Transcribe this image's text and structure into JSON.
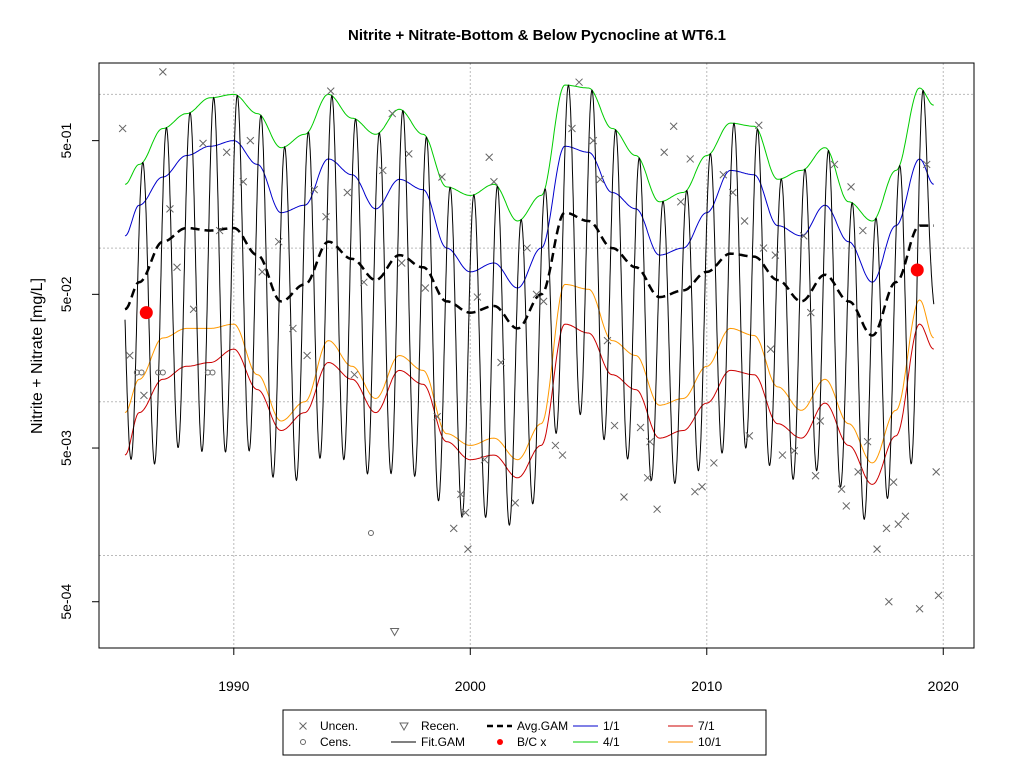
{
  "chart_data": {
    "type": "line",
    "title": "Nitrite + Nitrate-Bottom & Below Pycnocline at WT6.1",
    "xlabel": "",
    "ylabel": "Nitrite + Nitrate [mg/L]",
    "y_scale": "log",
    "xlim": [
      1984.3,
      2021.3
    ],
    "ylim": [
      0.00025,
      1.6
    ],
    "x_ticks": [
      1990,
      2000,
      2010,
      2020
    ],
    "x_tick_labels": [
      "1990",
      "2000",
      "2010",
      "2020"
    ],
    "y_ticks": [
      0.0005,
      0.005,
      0.05,
      0.5
    ],
    "y_tick_labels": [
      "5e-04",
      "5e-03",
      "5e-02",
      "5e-01"
    ],
    "grid_lines": [
      0.001,
      0.01,
      0.1,
      1
    ],
    "grid_x": [
      1990,
      2000,
      2010,
      2020
    ],
    "grid": true,
    "legend_position": "bottom",
    "legend": [
      {
        "key": "uncen",
        "label": "Uncen.",
        "symbol": "x",
        "color": "#666666"
      },
      {
        "key": "cens",
        "label": "Cens.",
        "symbol": "circle",
        "color": "#666666"
      },
      {
        "key": "recen",
        "label": "Recen.",
        "symbol": "triangle-down",
        "color": "#666666"
      },
      {
        "key": "fit_gam",
        "label": "Fit.GAM",
        "symbol": "line",
        "color": "#000000"
      },
      {
        "key": "avg_gam",
        "label": "Avg.GAM",
        "symbol": "dashed",
        "color": "#000000"
      },
      {
        "key": "bc_x",
        "label": "B/C x",
        "symbol": "dot",
        "color": "#ff0000"
      },
      {
        "key": "d1_1",
        "label": "1/1",
        "symbol": "line",
        "color": "#0000cc"
      },
      {
        "key": "d4_1",
        "label": "4/1",
        "symbol": "line",
        "color": "#00cc00"
      },
      {
        "key": "d7_1",
        "label": "7/1",
        "symbol": "line",
        "color": "#cc0000"
      },
      {
        "key": "d10_1",
        "label": "10/1",
        "symbol": "line",
        "color": "#ff9900"
      }
    ],
    "series": [
      {
        "key": "avg_gam",
        "color": "#000000",
        "dashed": true,
        "width": 2.5,
        "x": [
          1985.4,
          1986,
          1987,
          1988,
          1989,
          1990,
          1991,
          1992,
          1993,
          1994,
          1995,
          1996,
          1997,
          1998,
          1999,
          2000,
          2001,
          2002,
          2003,
          2004,
          2005,
          2006,
          2007,
          2008,
          2009,
          2010,
          2011,
          2012,
          2013,
          2014,
          2015,
          2016,
          2017,
          2018,
          2019,
          2019.6
        ],
        "y": [
          0.04,
          0.06,
          0.11,
          0.135,
          0.13,
          0.135,
          0.09,
          0.045,
          0.058,
          0.11,
          0.085,
          0.062,
          0.09,
          0.075,
          0.045,
          0.038,
          0.042,
          0.03,
          0.05,
          0.17,
          0.15,
          0.1,
          0.075,
          0.048,
          0.053,
          0.07,
          0.092,
          0.088,
          0.062,
          0.045,
          0.067,
          0.045,
          0.027,
          0.06,
          0.14,
          0.14
        ]
      },
      {
        "key": "d1_1",
        "color": "#0000cc",
        "dashed": false,
        "width": 1,
        "x": [
          1985.4,
          1986,
          1987,
          1988,
          1989,
          1990,
          1991,
          1992,
          1993,
          1994,
          1995,
          1996,
          1997,
          1998,
          1999,
          2000,
          2001,
          2002,
          2003,
          2004,
          2005,
          2006,
          2007,
          2008,
          2009,
          2010,
          2011,
          2012,
          2013,
          2014,
          2015,
          2016,
          2017,
          2018,
          2019,
          2019.6
        ],
        "y": [
          0.12,
          0.19,
          0.29,
          0.4,
          0.46,
          0.5,
          0.35,
          0.17,
          0.19,
          0.38,
          0.3,
          0.18,
          0.28,
          0.24,
          0.1,
          0.07,
          0.08,
          0.055,
          0.1,
          0.46,
          0.42,
          0.23,
          0.18,
          0.09,
          0.1,
          0.17,
          0.32,
          0.3,
          0.14,
          0.12,
          0.19,
          0.11,
          0.06,
          0.14,
          0.38,
          0.26
        ]
      },
      {
        "key": "d4_1",
        "color": "#00cc00",
        "dashed": false,
        "width": 1,
        "x": [
          1985.4,
          1986,
          1987,
          1988,
          1989,
          1990,
          1991,
          1992,
          1993,
          1994,
          1995,
          1996,
          1997,
          1998,
          1999,
          2000,
          2001,
          2002,
          2003,
          2004,
          2005,
          2006,
          2007,
          2008,
          2009,
          2010,
          2011,
          2012,
          2013,
          2014,
          2015,
          2016,
          2017,
          2018,
          2019,
          2019.6
        ],
        "y": [
          0.26,
          0.35,
          0.6,
          0.75,
          0.95,
          1.0,
          0.75,
          0.45,
          0.55,
          1.0,
          0.7,
          0.55,
          0.8,
          0.55,
          0.25,
          0.22,
          0.26,
          0.15,
          0.22,
          1.15,
          1.1,
          0.6,
          0.4,
          0.2,
          0.23,
          0.4,
          0.65,
          0.62,
          0.28,
          0.32,
          0.45,
          0.2,
          0.15,
          0.32,
          1.1,
          0.85
        ]
      },
      {
        "key": "d7_1",
        "color": "#cc0000",
        "dashed": false,
        "width": 1,
        "x": [
          1985.4,
          1986,
          1987,
          1988,
          1989,
          1990,
          1991,
          1992,
          1993,
          1994,
          1995,
          1996,
          1997,
          1998,
          1999,
          2000,
          2001,
          2002,
          2003,
          2004,
          2005,
          2006,
          2007,
          2008,
          2009,
          2010,
          2011,
          2012,
          2013,
          2014,
          2015,
          2016,
          2017,
          2018,
          2019,
          2019.6
        ],
        "y": [
          0.0045,
          0.0085,
          0.014,
          0.017,
          0.018,
          0.022,
          0.012,
          0.0065,
          0.0085,
          0.018,
          0.014,
          0.0085,
          0.016,
          0.013,
          0.0055,
          0.0042,
          0.0045,
          0.0032,
          0.0052,
          0.032,
          0.028,
          0.015,
          0.012,
          0.0058,
          0.0065,
          0.0098,
          0.016,
          0.015,
          0.0072,
          0.0058,
          0.0098,
          0.0052,
          0.0029,
          0.006,
          0.032,
          0.022
        ]
      },
      {
        "key": "d10_1",
        "color": "#ff9900",
        "dashed": false,
        "width": 1,
        "x": [
          1985.4,
          1986,
          1987,
          1988,
          1989,
          1990,
          1991,
          1992,
          1993,
          1994,
          1995,
          1996,
          1997,
          1998,
          1999,
          2000,
          2001,
          2002,
          2003,
          2004,
          2005,
          2006,
          2007,
          2008,
          2009,
          2010,
          2011,
          2012,
          2013,
          2014,
          2015,
          2016,
          2017,
          2018,
          2019,
          2019.6
        ],
        "y": [
          0.0085,
          0.014,
          0.026,
          0.03,
          0.03,
          0.032,
          0.015,
          0.0075,
          0.01,
          0.025,
          0.017,
          0.0105,
          0.02,
          0.016,
          0.0062,
          0.0052,
          0.0058,
          0.0042,
          0.0072,
          0.058,
          0.054,
          0.025,
          0.02,
          0.0095,
          0.0105,
          0.017,
          0.03,
          0.027,
          0.0125,
          0.0088,
          0.014,
          0.0072,
          0.004,
          0.0088,
          0.046,
          0.026
        ]
      },
      {
        "key": "fit_gam",
        "color": "#000000",
        "dashed": false,
        "width": 1,
        "seasonal": true,
        "x": [
          1985.4,
          1986,
          1987,
          1988,
          1989,
          1990,
          1991,
          1992,
          1993,
          1994,
          1995,
          1996,
          1997,
          1998,
          1999,
          2000,
          2001,
          2002,
          2003,
          2004,
          2005,
          2006,
          2007,
          2008,
          2009,
          2010,
          2011,
          2012,
          2013,
          2014,
          2015,
          2016,
          2017,
          2018,
          2019,
          2019.6
        ],
        "peak_y": [
          0.26,
          0.35,
          0.6,
          0.75,
          0.95,
          1.0,
          0.75,
          0.45,
          0.55,
          1.0,
          0.7,
          0.55,
          0.8,
          0.55,
          0.25,
          0.22,
          0.26,
          0.15,
          0.22,
          1.15,
          1.1,
          0.6,
          0.4,
          0.2,
          0.23,
          0.4,
          0.65,
          0.62,
          0.28,
          0.32,
          0.45,
          0.2,
          0.15,
          0.32,
          1.1,
          0.85
        ],
        "trough_y": [
          0.0045,
          0.0038,
          0.004,
          0.0055,
          0.0045,
          0.0048,
          0.0048,
          0.0028,
          0.0032,
          0.0048,
          0.004,
          0.0032,
          0.0035,
          0.0032,
          0.002,
          0.0017,
          0.0018,
          0.0015,
          0.0025,
          0.009,
          0.008,
          0.005,
          0.004,
          0.0028,
          0.003,
          0.0038,
          0.005,
          0.005,
          0.0035,
          0.003,
          0.0038,
          0.0025,
          0.0015,
          0.0028,
          0.0045,
          0.04
        ]
      },
      {
        "key": "bc_x",
        "type": "points",
        "color": "#ff0000",
        "x": [
          1986.3,
          2018.9
        ],
        "y": [
          0.038,
          0.072
        ]
      },
      {
        "key": "cens",
        "type": "points",
        "color": "#666666",
        "x": [
          1985.9,
          1986.1,
          1986.8,
          1987.0,
          1988.9,
          1989.1,
          1995.8
        ],
        "y": [
          0.0155,
          0.0155,
          0.0155,
          0.0155,
          0.0155,
          0.0155,
          0.0014
        ]
      },
      {
        "key": "recen",
        "type": "points",
        "color": "#666666",
        "x": [
          1996.8
        ],
        "y": [
          0.00032
        ]
      },
      {
        "key": "uncen",
        "type": "points",
        "color": "#666666",
        "x": [
          1987.0,
          1985.3,
          1985.6,
          1986.2,
          1987.6,
          1988.3,
          1988.7,
          1989.4,
          1990.7,
          1991.2,
          1991.9,
          1992.5,
          1993.4,
          1994.1,
          1994.8,
          1995.5,
          1996.3,
          1996.7,
          1997.4,
          1998.1,
          1998.8,
          1999.3,
          1999.6,
          1999.9,
          2000.3,
          2000.8,
          2001.3,
          2001.9,
          2002.4,
          2003.1,
          2003.6,
          2004.6,
          2005.2,
          2005.8,
          2006.5,
          2007.2,
          2007.5,
          2007.9,
          2008.6,
          2009.3,
          2009.8,
          2010.3,
          2011.1,
          2011.6,
          2012.2,
          2012.7,
          2013.2,
          2013.7,
          2014.4,
          2014.8,
          2015.4,
          2015.9,
          2016.4,
          2016.8,
          2017.2,
          2017.6,
          2017.9,
          2018.4,
          2019.0,
          2019.3,
          2019.7,
          2019.8,
          1987.3,
          1989.7,
          1990.4,
          1993.9,
          1997.1,
          1999.8,
          2001.0,
          2004.3,
          2005.5,
          2008.2,
          2010.7,
          2012.4,
          2014.1,
          2016.1,
          2017.7,
          2003.9,
          2008.9,
          2012.9,
          2016.6,
          1998.6,
          2000.6,
          2002.8,
          2006.1,
          2007.6,
          2009.5,
          2011.8,
          2014.6,
          2015.7,
          2018.1,
          1993.1,
          1995.1
        ],
        "y": [
          1.4,
          0.6,
          0.02,
          0.011,
          0.075,
          0.04,
          0.48,
          0.13,
          0.5,
          0.07,
          0.11,
          0.03,
          0.24,
          1.05,
          0.23,
          0.06,
          0.32,
          0.75,
          0.41,
          0.055,
          0.29,
          0.0015,
          0.0025,
          0.0011,
          0.048,
          0.39,
          0.018,
          0.0022,
          0.1,
          0.045,
          0.0052,
          1.2,
          0.5,
          0.025,
          0.0024,
          0.0068,
          0.0032,
          0.002,
          0.62,
          0.38,
          0.0028,
          0.004,
          0.23,
          0.15,
          0.63,
          0.022,
          0.0045,
          0.0048,
          0.038,
          0.0075,
          0.35,
          0.0021,
          0.0035,
          0.0055,
          0.0011,
          0.0015,
          0.003,
          0.0018,
          0.00045,
          0.35,
          0.0035,
          0.00055,
          0.18,
          0.42,
          0.27,
          0.16,
          0.08,
          0.0019,
          0.27,
          0.6,
          0.28,
          0.42,
          0.3,
          0.1,
          0.12,
          0.25,
          0.0005,
          0.0045,
          0.2,
          0.09,
          0.13,
          0.008,
          0.0042,
          0.05,
          0.007,
          0.0055,
          0.0026,
          0.006,
          0.0033,
          0.0027,
          0.0016,
          0.02,
          0.015
        ]
      }
    ]
  }
}
